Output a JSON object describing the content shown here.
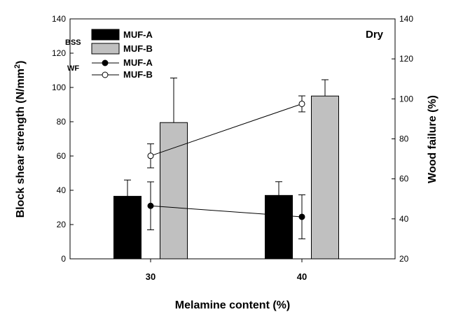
{
  "chart_data": {
    "type": "bar",
    "condition_label": "Dry",
    "categories": [
      "30",
      "40"
    ],
    "xlabel": "Melamine content (%)",
    "ylabel_left": {
      "text": "Block shear strength (N/mm",
      "sup": "2",
      "close": ")"
    },
    "ylabel_right": "Wood failure (%)",
    "ylim_left": [
      0,
      140
    ],
    "ylim_right": [
      20,
      140
    ],
    "yticks_left": [
      "0",
      "20",
      "40",
      "60",
      "80",
      "100",
      "120",
      "140"
    ],
    "yticks_right": [
      "20",
      "40",
      "60",
      "80",
      "100",
      "120",
      "140"
    ],
    "bar_series": [
      {
        "name": "MUF-A",
        "color": "#000000",
        "values": [
          36.5,
          37
        ],
        "errors": [
          9.5,
          8
        ]
      },
      {
        "name": "MUF-B",
        "color": "#c0c0c0",
        "values": [
          79.5,
          95
        ],
        "errors": [
          26,
          9.5
        ]
      }
    ],
    "line_series": [
      {
        "name": "MUF-A",
        "marker": "filled",
        "values": [
          46.5,
          41
        ],
        "errors": [
          12,
          11
        ]
      },
      {
        "name": "MUF-B",
        "marker": "open",
        "values": [
          71.5,
          97.5
        ],
        "errors": [
          6,
          4
        ]
      }
    ],
    "legend": {
      "group_bss": "BSS",
      "group_wf": "WF",
      "placement": "top-left"
    }
  }
}
